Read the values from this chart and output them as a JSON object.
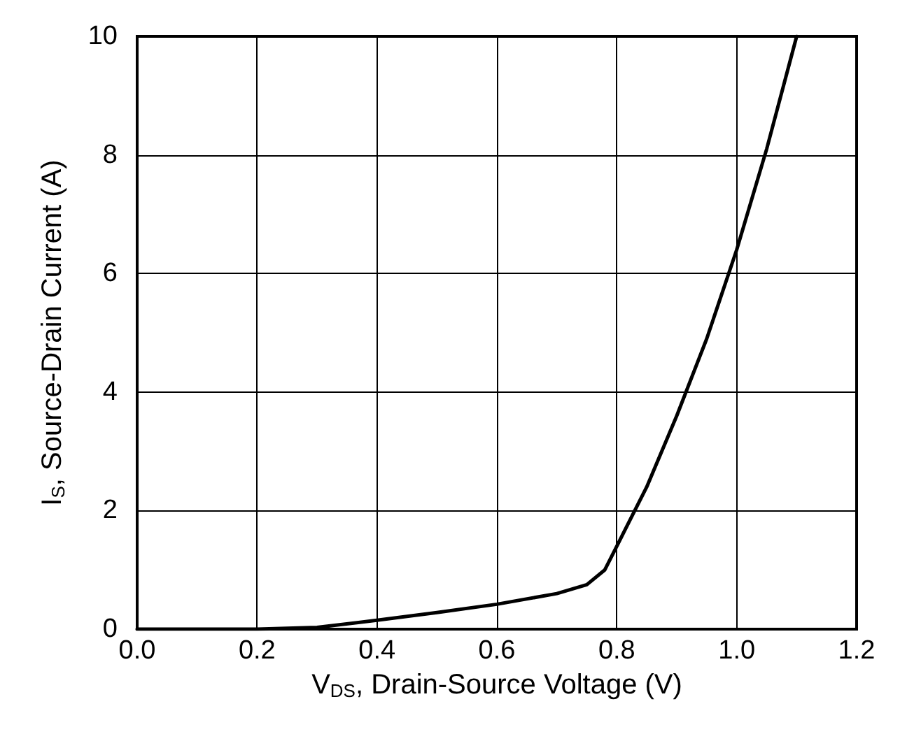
{
  "chart_data": {
    "type": "line",
    "xlabel": "V$_{DS}$, Drain-Source Voltage (V)",
    "ylabel": "I$_{S}$, Source-Drain Current (A)",
    "series": [
      {
        "color": "#000000",
        "x": [
          0,
          0.1,
          0.2,
          0.3,
          0.4,
          0.5,
          0.6,
          0.7,
          0.75,
          0.78,
          0.8,
          0.85,
          0.9,
          0.95,
          1.0,
          1.05,
          1.1
        ],
        "values": [
          0,
          0,
          0,
          0.03,
          0.15,
          0.28,
          0.42,
          0.6,
          0.75,
          1.0,
          1.4,
          2.4,
          3.6,
          4.9,
          6.4,
          8.1,
          10
        ]
      }
    ],
    "xlim": [
      0,
      1.2
    ],
    "ylim": [
      0,
      10
    ],
    "xticks": [
      {
        "value": 0,
        "label": "0.0"
      },
      {
        "value": 0.2,
        "label": "0.2"
      },
      {
        "value": 0.4,
        "label": "0.4"
      },
      {
        "value": 0.6,
        "label": "0.6"
      },
      {
        "value": 0.8,
        "label": "0.8"
      },
      {
        "value": 1.0,
        "label": "1.0"
      },
      {
        "value": 1.2,
        "label": "1.2"
      }
    ],
    "yticks": [
      0,
      2,
      4,
      6,
      8,
      10
    ],
    "grid": true,
    "marker": "none",
    "line_style": "solid"
  }
}
